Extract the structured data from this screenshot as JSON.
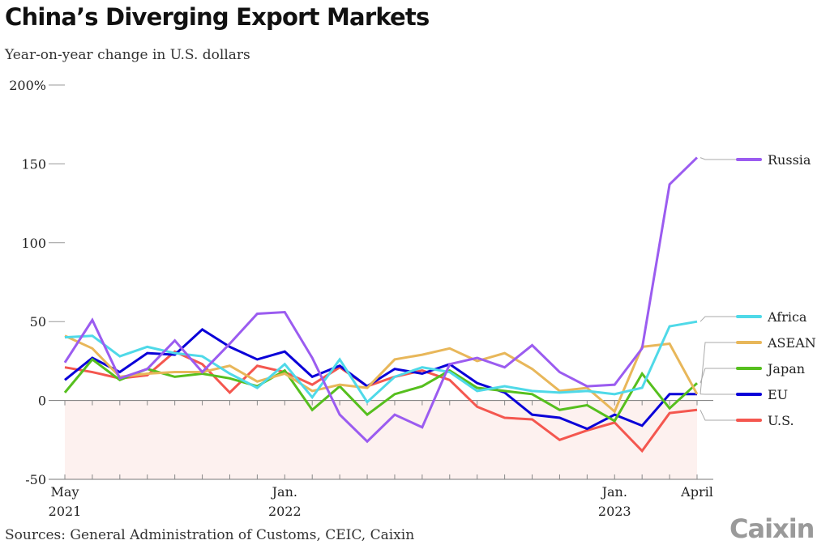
{
  "header": {
    "title": "China’s Diverging Export Markets",
    "subtitle": "Year-on-year change in U.S. dollars"
  },
  "footer": {
    "source": "Sources: General Administration of Customs, CEIC, Caixin",
    "logo": "Caixin"
  },
  "chart_data": {
    "type": "line",
    "title": "China’s Diverging Export Markets",
    "subtitle": "Year-on-year change in U.S. dollars",
    "xlabel": "",
    "ylabel": "Year-on-year change (%)",
    "ylim": [
      -50,
      200
    ],
    "yticks": [
      {
        "value": 200,
        "label": "200%"
      },
      {
        "value": 150,
        "label": "150"
      },
      {
        "value": 100,
        "label": "100"
      },
      {
        "value": 50,
        "label": "50"
      },
      {
        "value": 0,
        "label": "0"
      },
      {
        "value": -50,
        "label": "-50"
      }
    ],
    "x": [
      "2021-05",
      "2021-06",
      "2021-07",
      "2021-08",
      "2021-09",
      "2021-10",
      "2021-11",
      "2021-12",
      "2022-01",
      "2022-02",
      "2022-03",
      "2022-04",
      "2022-05",
      "2022-06",
      "2022-07",
      "2022-08",
      "2022-09",
      "2022-10",
      "2022-11",
      "2022-12",
      "2023-01",
      "2023-02",
      "2023-03",
      "2023-04"
    ],
    "xtick_labels": [
      {
        "index": 0,
        "line1": "May",
        "line2": "2021"
      },
      {
        "index": 8,
        "line1": "Jan.",
        "line2": "2022"
      },
      {
        "index": 20,
        "line1": "Jan.",
        "line2": "2023"
      },
      {
        "index": 23,
        "line1": "April",
        "line2": ""
      }
    ],
    "negative_shading": true,
    "legend_placement": "right",
    "series": [
      {
        "name": "Russia",
        "color": "#9b5cf0",
        "values": [
          24,
          51,
          14,
          20,
          38,
          18,
          36,
          55,
          56,
          27,
          -9,
          -26,
          -9,
          -17,
          23,
          27,
          21,
          35,
          18,
          9,
          10,
          33,
          137,
          154
        ]
      },
      {
        "name": "Africa",
        "color": "#4fd9e8",
        "values": [
          40,
          41,
          28,
          34,
          30,
          28,
          17,
          8,
          23,
          2,
          26,
          -1,
          15,
          21,
          18,
          6,
          9,
          6,
          5,
          6,
          4,
          8,
          47,
          50
        ]
      },
      {
        "name": "ASEAN",
        "color": "#e8b75a",
        "values": [
          41,
          33,
          15,
          17,
          18,
          18,
          22,
          12,
          17,
          6,
          10,
          8,
          26,
          29,
          33,
          25,
          30,
          20,
          6,
          8,
          -7,
          34,
          36,
          4
        ]
      },
      {
        "name": "Japan",
        "color": "#56bf1e",
        "values": [
          5,
          26,
          13,
          20,
          15,
          17,
          14,
          9,
          19,
          -6,
          9,
          -9,
          4,
          9,
          19,
          8,
          6,
          4,
          -6,
          -3,
          -13,
          17,
          -5,
          11
        ]
      },
      {
        "name": "EU",
        "color": "#0a00d8",
        "values": [
          13,
          27,
          18,
          30,
          29,
          45,
          34,
          26,
          31,
          15,
          22,
          9,
          20,
          17,
          23,
          11,
          5,
          -9,
          -11,
          -18,
          -9,
          -16,
          4,
          4
        ]
      },
      {
        "name": "U.S.",
        "color": "#f4574f",
        "values": [
          21,
          18,
          14,
          16,
          31,
          23,
          5,
          22,
          18,
          10,
          21,
          9,
          15,
          19,
          13,
          -4,
          -11,
          -12,
          -25,
          -19,
          -14,
          -32,
          -8,
          -6
        ]
      }
    ]
  }
}
